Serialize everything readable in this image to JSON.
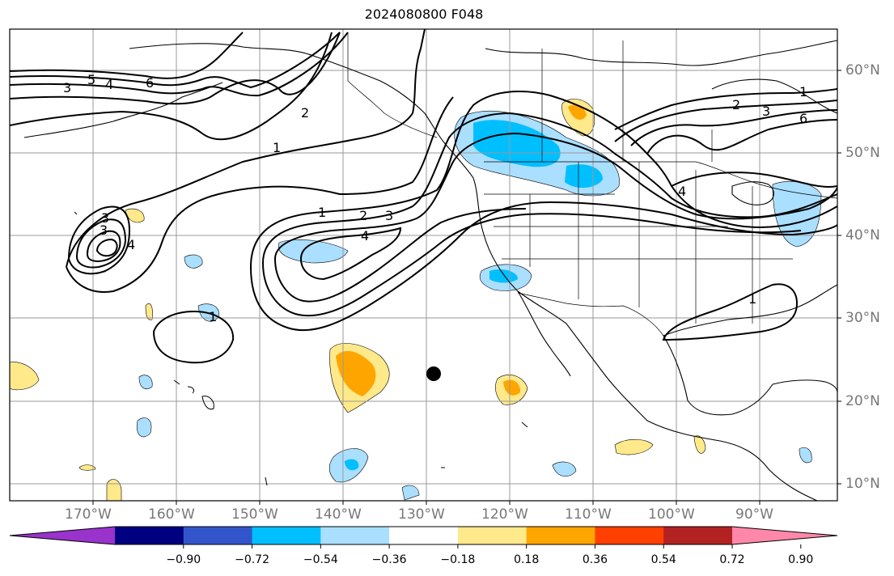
{
  "title": "2024080800 F048",
  "lat_labels": [
    "60°N",
    "50°N",
    "40°N",
    "30°N",
    "20°N",
    "10°N"
  ],
  "lon_labels": [
    "170°W",
    "160°W",
    "150°W",
    "140°W",
    "130°W",
    "120°W",
    "110°W",
    "100°W",
    "90°W"
  ],
  "colorbar": {
    "colors": [
      "#9933cc",
      "#000080",
      "#3355cc",
      "#00bfff",
      "#aadfff",
      "#ffffff",
      "#ffe98a",
      "#ffa500",
      "#ff4000",
      "#b22222",
      "#ff88aa"
    ],
    "labels": [
      "−0.90",
      "−0.72",
      "−0.54",
      "−0.36",
      "−0.18",
      "0.18",
      "0.36",
      "0.54",
      "0.72",
      "0.90"
    ]
  },
  "contour_labels": [
    "3",
    "5",
    "4",
    "6",
    "2",
    "1",
    "1",
    "2",
    "3",
    "4",
    "3",
    "3",
    "4",
    "1",
    "1",
    "2",
    "3",
    "6",
    "4",
    "1"
  ]
}
